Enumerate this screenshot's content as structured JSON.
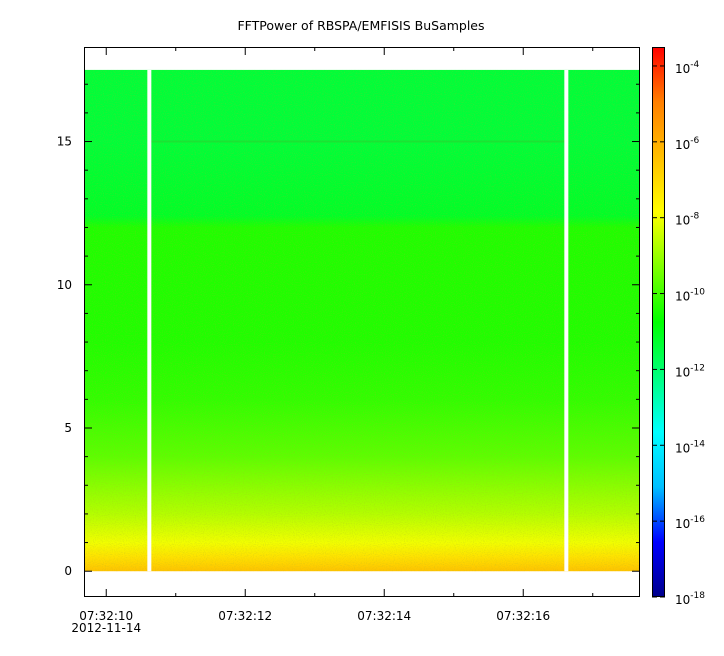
{
  "chart_data": {
    "type": "heatmap",
    "title": "FFTPower of RBSPA/EMFISIS  BuSamples",
    "xlabel": "",
    "ylabel": "",
    "y_ticks": [
      {
        "value": 0,
        "label": "0"
      },
      {
        "value": 5,
        "label": "5"
      },
      {
        "value": 10,
        "label": "10"
      },
      {
        "value": 15,
        "label": "15"
      }
    ],
    "ylim": [
      -0.9,
      18.3
    ],
    "y_data_range": [
      0,
      17.5
    ],
    "x_ticks": [
      {
        "value": 0,
        "label": "07:32:10"
      },
      {
        "value": 2,
        "label": "07:32:12"
      },
      {
        "value": 4,
        "label": "07:32:14"
      },
      {
        "value": 6,
        "label": "07:32:16"
      }
    ],
    "x_date_label": "2012-11-14",
    "x_range_label": [
      "07:32:09.68",
      "07:32:17.68"
    ],
    "xlim_seconds": [
      -0.32,
      7.68
    ],
    "data_gaps_seconds": [
      0.62,
      6.62
    ],
    "colorbar": {
      "scale": "log",
      "range": [
        "1e-18",
        "1e-3.5"
      ],
      "ticks": [
        {
          "base": "10",
          "exp": "-4"
        },
        {
          "base": "10",
          "exp": "-6"
        },
        {
          "base": "10",
          "exp": "-8"
        },
        {
          "base": "10",
          "exp": "-10"
        },
        {
          "base": "10",
          "exp": "-12"
        },
        {
          "base": "10",
          "exp": "-14"
        },
        {
          "base": "10",
          "exp": "-16"
        },
        {
          "base": "10",
          "exp": "-18"
        }
      ]
    },
    "spectrum_profile": [
      {
        "y": 0.0,
        "log10_power": -6.5
      },
      {
        "y": 0.5,
        "log10_power": -7.2
      },
      {
        "y": 1.0,
        "log10_power": -8.0
      },
      {
        "y": 2.0,
        "log10_power": -8.7
      },
      {
        "y": 3.0,
        "log10_power": -9.2
      },
      {
        "y": 4.0,
        "log10_power": -9.7
      },
      {
        "y": 6.0,
        "log10_power": -10.2
      },
      {
        "y": 8.0,
        "log10_power": -10.4
      },
      {
        "y": 10.0,
        "log10_power": -10.4
      },
      {
        "y": 12.0,
        "log10_power": -10.4
      },
      {
        "y": 12.4,
        "log10_power": -11.2
      },
      {
        "y": 15.0,
        "log10_power": -11.4
      },
      {
        "y": 17.5,
        "log10_power": -11.4
      }
    ],
    "colors": [
      "#00008b",
      "#0000ff",
      "#00bfff",
      "#00ffff",
      "#00ff7f",
      "#00ff00",
      "#7fff00",
      "#ffff00",
      "#ffbf00",
      "#ff7f00",
      "#ff0000"
    ]
  }
}
